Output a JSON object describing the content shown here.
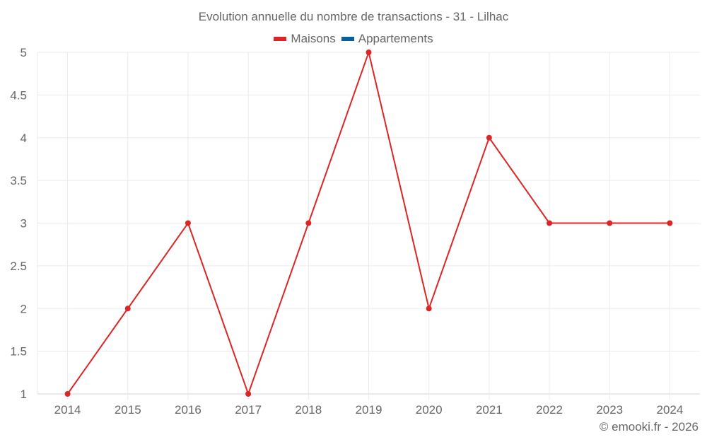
{
  "title": "Evolution annuelle du nombre de transactions - 31 - Lilhac",
  "legend": [
    {
      "label": "Maisons",
      "color": "#dc2626"
    },
    {
      "label": "Appartements",
      "color": "#075f9b"
    }
  ],
  "credit": "© emooki.fr - 2026",
  "chart_data": {
    "type": "line",
    "title": "Evolution annuelle du nombre de transactions - 31 - Lilhac",
    "xlabel": "",
    "ylabel": "",
    "x": [
      "2014",
      "2015",
      "2016",
      "2017",
      "2018",
      "2019",
      "2020",
      "2021",
      "2022",
      "2023",
      "2024"
    ],
    "series": [
      {
        "name": "Maisons",
        "color": "#dc2626",
        "values": [
          1,
          2,
          3,
          1,
          3,
          5,
          2,
          4,
          3,
          3,
          3
        ]
      },
      {
        "name": "Appartements",
        "color": "#075f9b",
        "values": []
      }
    ],
    "yticks": [
      "1",
      "1.5",
      "2",
      "2.5",
      "3",
      "3.5",
      "4",
      "4.5",
      "5"
    ],
    "ylim": [
      1,
      5
    ],
    "grid": true,
    "legend_position": "top"
  }
}
